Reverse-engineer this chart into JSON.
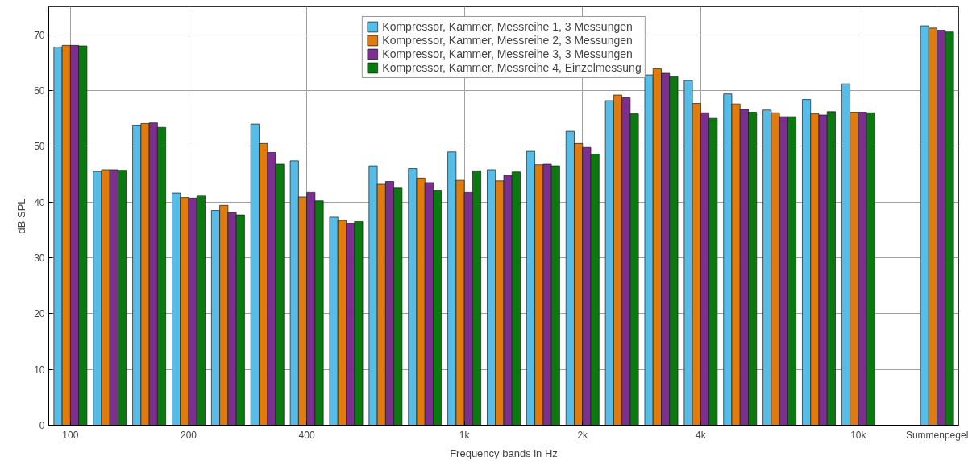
{
  "chart_data": {
    "type": "bar",
    "xlabel": "Frequency bands in Hz",
    "ylabel": "dB SPL",
    "categories": [
      "100",
      null,
      null,
      "200",
      null,
      null,
      "400",
      null,
      null,
      null,
      "1k",
      null,
      null,
      "2k",
      null,
      null,
      "4k",
      null,
      null,
      null,
      "10k",
      null,
      "Summenpegel"
    ],
    "series": [
      {
        "name": "Kompressor, Kammer, Messreihe 1, 3 Messungen",
        "color": "#56bde8",
        "values": [
          67.8,
          45.5,
          53.8,
          41.6,
          38.5,
          54.0,
          47.4,
          37.3,
          46.5,
          46.0,
          49.0,
          45.8,
          49.1,
          52.7,
          58.2,
          62.8,
          61.8,
          59.4,
          56.5,
          58.4,
          61.2,
          null,
          71.6
        ]
      },
      {
        "name": "Kompressor, Kammer, Messreihe 2, 3 Messungen",
        "color": "#e07b0c",
        "values": [
          68.1,
          45.8,
          54.1,
          40.8,
          39.4,
          50.5,
          40.9,
          36.7,
          43.2,
          44.3,
          43.9,
          43.8,
          46.7,
          50.5,
          59.2,
          63.9,
          57.7,
          57.6,
          56.0,
          55.8,
          56.1,
          null,
          71.2
        ]
      },
      {
        "name": "Kompressor, Kammer, Messreihe 3, 3 Messungen",
        "color": "#7b2f8e",
        "values": [
          68.1,
          45.8,
          54.2,
          40.7,
          38.1,
          48.9,
          41.7,
          36.2,
          43.7,
          43.5,
          41.7,
          44.8,
          46.8,
          49.8,
          58.7,
          63.1,
          56.0,
          56.6,
          55.3,
          55.6,
          56.1,
          null,
          70.8
        ]
      },
      {
        "name": "Kompressor, Kammer, Messreihe 4, Einzelmessung",
        "color": "#0a7a10",
        "values": [
          68.0,
          45.7,
          53.4,
          41.2,
          37.7,
          46.8,
          40.2,
          36.5,
          42.5,
          42.1,
          45.6,
          45.4,
          46.5,
          48.6,
          55.8,
          62.5,
          55.0,
          56.1,
          55.3,
          56.2,
          56.0,
          null,
          70.5
        ]
      }
    ],
    "ylim": [
      0,
      75
    ],
    "yticks": [
      0,
      10,
      20,
      30,
      40,
      50,
      60,
      70
    ],
    "grid": true,
    "legend": "top"
  }
}
